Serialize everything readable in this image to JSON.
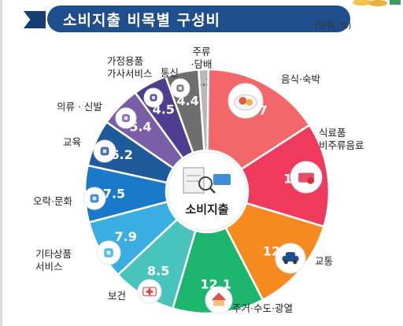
{
  "header": {
    "title": "소비지출 비목별 구성비",
    "unit": "(단위: %)"
  },
  "center_label": "소비지출",
  "colors": {
    "title_bg": "#1f4e8c",
    "slices": [
      "#b8b8b8",
      "#f1676a",
      "#ee3b5d",
      "#f58b1f",
      "#1eb56f",
      "#48c4bd",
      "#3aaee0",
      "#1b79c9",
      "#1f5b9a",
      "#7a5ea8",
      "#4f3e90",
      "#6e6e6e"
    ]
  },
  "chart_data": {
    "type": "pie",
    "title": "소비지출 비목별 구성비",
    "unit": "%",
    "categories": [
      "주류·담배",
      "음식·숙박",
      "식료품 비주류음료",
      "교통",
      "주거·수도·광열",
      "보건",
      "기타상품 서비스",
      "오락·문화",
      "교육",
      "의류·신발",
      "가정용품 가사서비스",
      "통신"
    ],
    "values": [
      1.3,
      15.7,
      13.8,
      12.8,
      12.1,
      8.5,
      7.9,
      7.5,
      6.2,
      5.4,
      4.5,
      4.4
    ],
    "labels": [
      [
        "주류",
        "·담배"
      ],
      [
        "음식·숙박"
      ],
      [
        "식료품",
        "비주류음료"
      ],
      [
        "교통"
      ],
      [
        "주거·수도·광열"
      ],
      [
        "보건"
      ],
      [
        "기타상품",
        "서비스"
      ],
      [
        "오락·문화"
      ],
      [
        "교육"
      ],
      [
        "의류 · 신발"
      ],
      [
        "가정용품",
        "가사서비스"
      ],
      [
        "통신"
      ]
    ],
    "icons": [
      "",
      "food-plate-icon",
      "groceries-icon",
      "car-icon",
      "house-icon",
      "first-aid-kit-icon",
      "tools-icon",
      "popcorn-icon",
      "graduation-cap-icon",
      "shirt-icon",
      "household-goods-icon",
      "phone-icon"
    ],
    "legend": "none"
  }
}
